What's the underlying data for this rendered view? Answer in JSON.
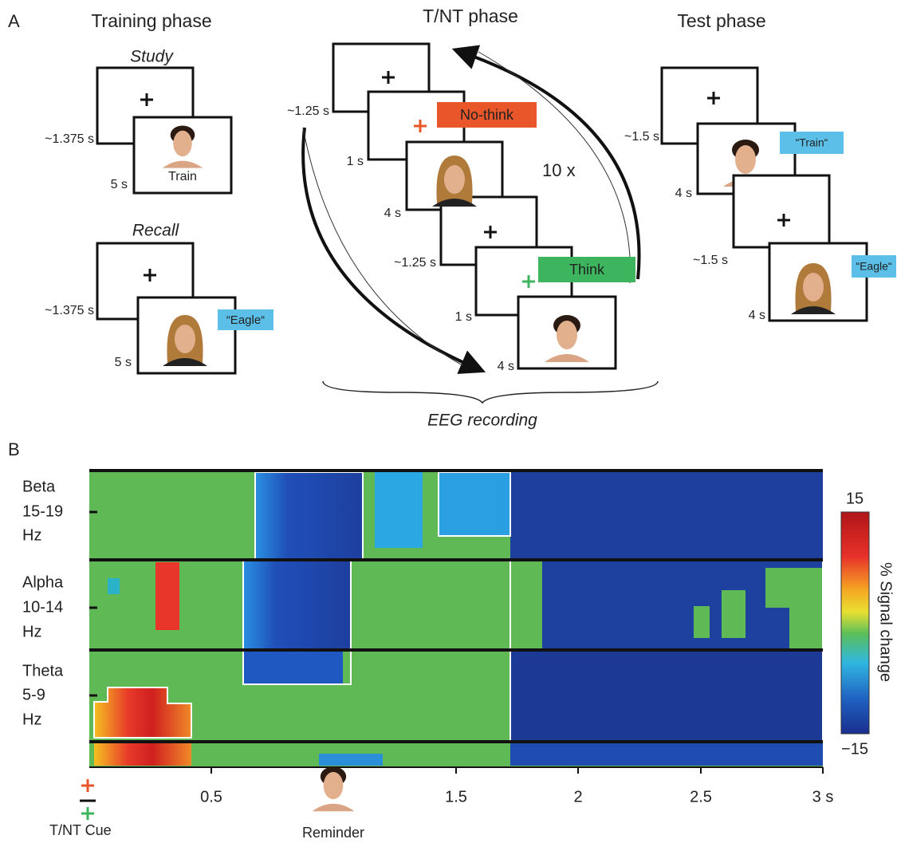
{
  "panel_a": {
    "label": "A",
    "training": {
      "title": "Training phase",
      "study": {
        "title": "Study",
        "fixation_time": "~1.375 s",
        "stimulus_time": "5 s",
        "word": "Train"
      },
      "recall": {
        "title": "Recall",
        "fixation_time": "~1.375 s",
        "stimulus_time": "5 s",
        "cue": "“Eagle“"
      }
    },
    "tnt": {
      "title": "T/NT phase",
      "times": [
        "~1.25 s",
        "1 s",
        "4 s",
        "~1.25 s",
        "1 s",
        "4 s"
      ],
      "no_think": "No-think",
      "think": "Think",
      "repeat": "10 x",
      "recording": "EEG recording"
    },
    "test": {
      "title": "Test phase",
      "times": [
        "~1.5 s",
        "4 s",
        "~1.5 s",
        "4 s"
      ],
      "cues": [
        "“Train“",
        "“Eagle“"
      ]
    }
  },
  "panel_b": {
    "label": "B",
    "bands": [
      {
        "name": "Beta",
        "range": "15-19",
        "unit": "Hz"
      },
      {
        "name": "Alpha",
        "range": "10-14",
        "unit": "Hz"
      },
      {
        "name": "Theta",
        "range": "5-9",
        "unit": "Hz"
      }
    ],
    "time_labels": [
      "0.5",
      "1.5",
      "2",
      "2.5",
      "3 s"
    ],
    "colorbar": {
      "max": "15",
      "min": "−15",
      "label": "% Signal change"
    },
    "cue_label": "T/NT Cue",
    "reminder_label": "Reminder"
  }
}
